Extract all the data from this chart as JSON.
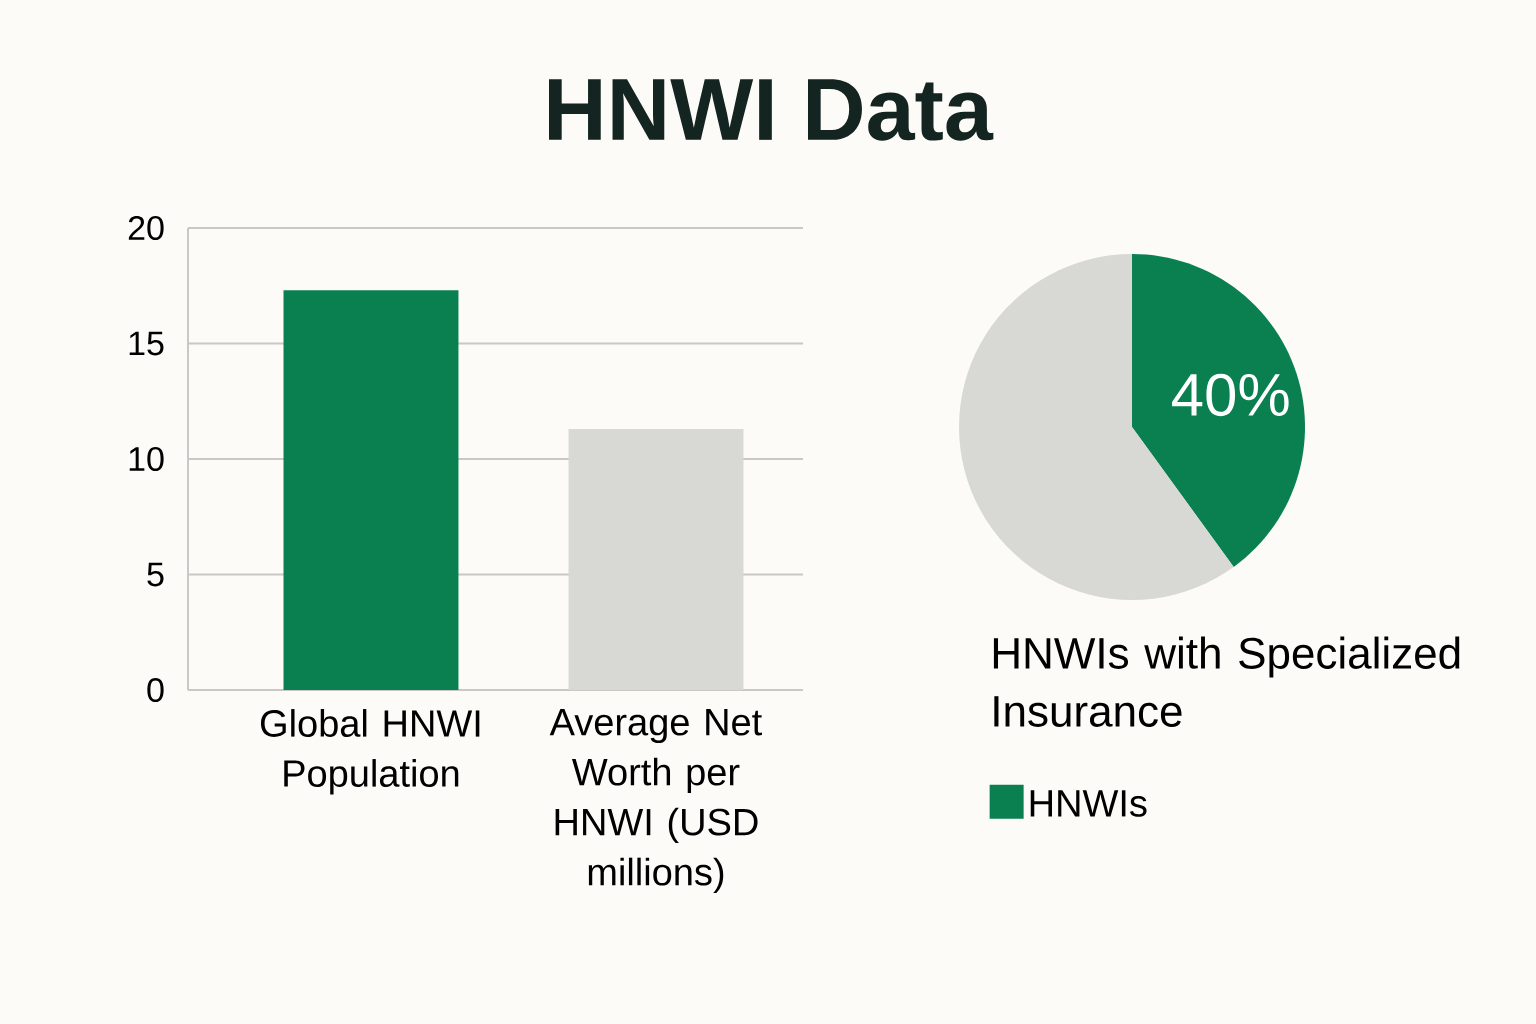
{
  "chart_data": [
    {
      "type": "bar",
      "title": "HNWI Data",
      "categories": [
        "Global HNWI Population",
        "Average Net Worth per HNWI (USD millions)"
      ],
      "values": [
        17.3,
        11.3
      ],
      "colors": [
        "#0a8050",
        "#d8d8d5"
      ],
      "ylim": [
        0,
        20
      ],
      "yticks": [
        0,
        5,
        10,
        15,
        20
      ],
      "grid": "y"
    },
    {
      "type": "pie",
      "title": "HNWIs with Specialized Insurance",
      "categories": [
        "HNWIs",
        null
      ],
      "values": [
        40,
        60
      ],
      "colors": [
        "#0a8050",
        "#d8d8d5"
      ],
      "value_labels": [
        "40%",
        null
      ],
      "legend": "bottom"
    }
  ]
}
